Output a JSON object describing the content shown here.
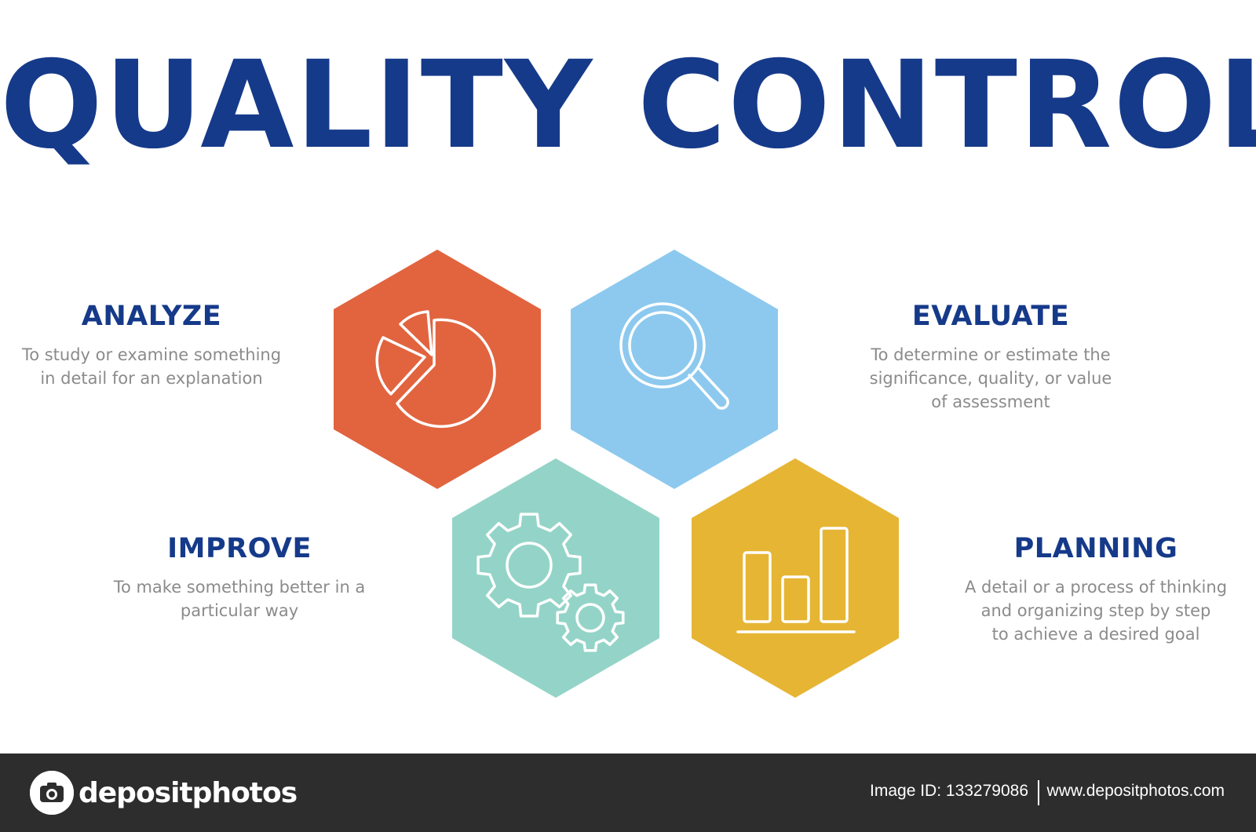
{
  "title": "QUALITY CONTROL",
  "colors": {
    "title": "#163a8a",
    "analyze_hex": "#e1643f",
    "evaluate_hex": "#8dc9ee",
    "improve_hex": "#94d4c8",
    "planning_hex": "#e6b534",
    "description_text": "#8b8b8b",
    "footer_bg": "#2d2d2d"
  },
  "items": {
    "analyze": {
      "heading": "ANALYZE",
      "description": [
        "To study or examine something",
        "in detail for an explanation"
      ],
      "icon": "pie-chart-icon"
    },
    "evaluate": {
      "heading": "EVALUATE",
      "description": [
        "To determine or estimate the",
        "significance, quality, or value",
        "of assessment"
      ],
      "icon": "magnifier-icon"
    },
    "improve": {
      "heading": "IMPROVE",
      "description": [
        "To make something better in a",
        "particular way"
      ],
      "icon": "gears-icon"
    },
    "planning": {
      "heading": "PLANNING",
      "description": [
        "A detail or a process of thinking",
        "and organizing step by step",
        "to achieve a desired goal"
      ],
      "icon": "bar-chart-icon"
    }
  },
  "footer": {
    "logo_text": "depositphotos",
    "image_id": "Image ID: 133279086",
    "site": "www.depositphotos.com"
  }
}
